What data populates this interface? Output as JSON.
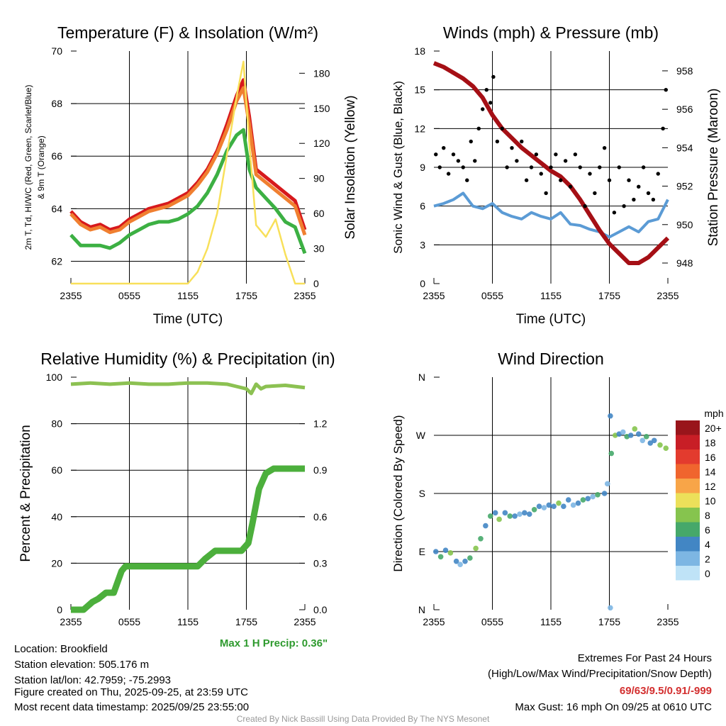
{
  "chart_data": [
    {
      "type": "line",
      "title": "Temperature (F) & Insolation (W/m²)",
      "xlabel": "Time (UTC)",
      "ylabel": "2m T, Td, HI/WC (Red, Green, Scarlet/Blue) & 9m T (Orange)",
      "ylabel_right": "Solar Insolation (Yellow)",
      "xticks": [
        "2355",
        "0555",
        "1155",
        "1755",
        "2355"
      ],
      "ylim": [
        61.15,
        70
      ],
      "yticks": [
        62,
        64,
        66,
        68,
        70
      ],
      "ylim_right": [
        0,
        199
      ],
      "yticks_right": [
        0,
        30,
        60,
        90,
        120,
        150,
        180
      ],
      "x_hours": [
        0,
        1,
        2,
        3,
        4,
        5,
        6,
        7,
        8,
        9,
        10,
        11,
        12,
        13,
        14,
        15,
        16,
        17,
        17.7,
        18.3,
        19,
        20,
        21,
        22,
        23,
        24
      ],
      "series": [
        {
          "name": "2m T",
          "color": "#d7191c",
          "values": [
            63.9,
            63.5,
            63.3,
            63.4,
            63.2,
            63.3,
            63.6,
            63.8,
            64.0,
            64.1,
            64.2,
            64.4,
            64.6,
            65.0,
            65.5,
            66.2,
            67.2,
            68.3,
            68.9,
            67.5,
            65.5,
            65.2,
            64.9,
            64.6,
            64.3,
            63.2
          ]
        },
        {
          "name": "9m T",
          "color": "#f07f30",
          "values": [
            63.8,
            63.4,
            63.2,
            63.3,
            63.1,
            63.2,
            63.5,
            63.7,
            63.9,
            64.0,
            64.1,
            64.3,
            64.5,
            64.9,
            65.4,
            66.1,
            67.0,
            68.1,
            68.6,
            67.2,
            65.3,
            65.0,
            64.7,
            64.4,
            64.1,
            63.0
          ]
        },
        {
          "name": "Td",
          "color": "#3cb043",
          "values": [
            63.0,
            62.6,
            62.6,
            62.6,
            62.5,
            62.7,
            63.0,
            63.2,
            63.4,
            63.5,
            63.5,
            63.6,
            63.8,
            64.1,
            64.6,
            65.3,
            66.2,
            66.8,
            67.0,
            65.5,
            64.8,
            64.4,
            64.0,
            63.5,
            63.3,
            62.3
          ]
        },
        {
          "name": "Solar",
          "color": "#f8e05a",
          "axis": "right",
          "values": [
            0,
            0,
            0,
            0,
            0,
            0,
            0,
            0,
            0,
            0,
            0,
            0,
            0,
            10,
            30,
            60,
            110,
            160,
            190,
            120,
            50,
            40,
            55,
            25,
            0,
            0
          ]
        }
      ]
    },
    {
      "type": "line+scatter",
      "title": "Winds (mph) & Pressure (mb)",
      "xlabel": "Time (UTC)",
      "ylabel": "Sonic Wind & Gust (Blue, Black)",
      "ylabel_right": "Station Pressure (Maroon)",
      "xticks": [
        "2355",
        "0555",
        "1155",
        "1755",
        "2355"
      ],
      "ylim": [
        0,
        18
      ],
      "yticks": [
        0,
        3,
        6,
        9,
        12,
        15,
        18
      ],
      "ylim_right": [
        946.93,
        959.03
      ],
      "yticks_right": [
        948,
        950,
        952,
        954,
        956,
        958
      ],
      "x_hours": [
        0,
        1,
        2,
        3,
        4,
        5,
        6,
        7,
        8,
        9,
        10,
        11,
        12,
        13,
        14,
        15,
        16,
        17,
        18,
        19,
        20,
        21,
        22,
        23,
        24
      ],
      "series": [
        {
          "name": "Sonic Wind",
          "color": "#5b9bd5",
          "values": [
            6,
            6.2,
            6.5,
            7,
            6,
            5.8,
            6.2,
            5.5,
            5.2,
            5,
            5.5,
            5.2,
            5,
            5.5,
            4.6,
            4.5,
            4.2,
            4,
            3.6,
            4,
            4.4,
            4,
            4.8,
            5,
            6.5
          ]
        },
        {
          "name": "Station Pressure",
          "color": "#a50f15",
          "axis": "right",
          "values": [
            958.4,
            958.2,
            957.9,
            957.6,
            957.2,
            956.6,
            955.7,
            955.0,
            954.5,
            954.0,
            953.6,
            953.2,
            952.8,
            952.5,
            952.0,
            951.3,
            950.5,
            949.7,
            949.0,
            948.5,
            948.0,
            948.0,
            948.3,
            948.8,
            949.3
          ]
        },
        {
          "name": "Gust",
          "color": "#000000",
          "type": "scatter",
          "points": [
            [
              0.2,
              10
            ],
            [
              0.6,
              9
            ],
            [
              1,
              10.5
            ],
            [
              1.5,
              8.5
            ],
            [
              2,
              10
            ],
            [
              2.5,
              9.5
            ],
            [
              3,
              9
            ],
            [
              3.4,
              8
            ],
            [
              3.8,
              11
            ],
            [
              4.2,
              9.5
            ],
            [
              4.6,
              12
            ],
            [
              5,
              13.5
            ],
            [
              5.4,
              15
            ],
            [
              5.8,
              14
            ],
            [
              6.1,
              16
            ],
            [
              6.5,
              11
            ],
            [
              7,
              12
            ],
            [
              7.5,
              9
            ],
            [
              8,
              10.5
            ],
            [
              8.5,
              9.5
            ],
            [
              9,
              11
            ],
            [
              9.5,
              8
            ],
            [
              10,
              9
            ],
            [
              10.5,
              10
            ],
            [
              11,
              8.5
            ],
            [
              11.5,
              7
            ],
            [
              12,
              9
            ],
            [
              12.5,
              10
            ],
            [
              13,
              8
            ],
            [
              13.5,
              9.5
            ],
            [
              14,
              7.5
            ],
            [
              14.5,
              10
            ],
            [
              15,
              9
            ],
            [
              15.5,
              6
            ],
            [
              16,
              8.5
            ],
            [
              16.5,
              7
            ],
            [
              17,
              9
            ],
            [
              17.5,
              10.5
            ],
            [
              18,
              8
            ],
            [
              18.5,
              5.5
            ],
            [
              19,
              9
            ],
            [
              19.5,
              6
            ],
            [
              20,
              8
            ],
            [
              20.5,
              6.5
            ],
            [
              21,
              7.5
            ],
            [
              21.5,
              9
            ],
            [
              22,
              7
            ],
            [
              22.5,
              6.5
            ],
            [
              23,
              8.5
            ],
            [
              23.5,
              12
            ],
            [
              23.8,
              15
            ]
          ]
        }
      ]
    },
    {
      "type": "line",
      "title": "Relative Humidity (%) & Precipitation (in)",
      "ylabel": "Percent & Precipitation",
      "xticks": [
        "2355",
        "0555",
        "1155",
        "1755",
        "2355"
      ],
      "ylim": [
        0,
        100
      ],
      "yticks": [
        0,
        20,
        40,
        60,
        80,
        100
      ],
      "ylim_right": [
        0,
        1.5
      ],
      "yticks_right": [
        "0.0",
        "0.3",
        "0.6",
        "0.9",
        "1.2"
      ],
      "annotation": "Max 1 H Precip: 0.36\"",
      "series": [
        {
          "name": "RH",
          "color": "#8cc152",
          "x": [
            0,
            2,
            4,
            6,
            8,
            10,
            12,
            14,
            16,
            17,
            18,
            18.5,
            19,
            19.5,
            20,
            22,
            24
          ],
          "values": [
            97,
            97.5,
            97,
            97.5,
            97,
            97,
            97.5,
            97.5,
            97,
            96,
            95,
            93,
            97,
            95,
            96,
            96.5,
            95.5
          ]
        },
        {
          "name": "Precip",
          "color": "#4caf3c",
          "axis": "right",
          "x": [
            0,
            1.3,
            2.2,
            2.8,
            3.6,
            4.4,
            5.2,
            5.6,
            13,
            13.8,
            14.8,
            17.5,
            18.2,
            18.6,
            19.3,
            20,
            20.8,
            24
          ],
          "values": [
            0,
            0,
            0.05,
            0.07,
            0.11,
            0.11,
            0.25,
            0.28,
            0.28,
            0.33,
            0.38,
            0.38,
            0.43,
            0.55,
            0.78,
            0.88,
            0.91,
            0.91
          ]
        }
      ]
    },
    {
      "type": "scatter",
      "title": "Wind Direction",
      "ylabel": "Direction (Colored By Speed)",
      "xticks": [
        "2355",
        "0555",
        "1155",
        "1755",
        "2355"
      ],
      "ylim": [
        0,
        360
      ],
      "yticks": [
        "N",
        "E",
        "S",
        "W",
        "N"
      ],
      "colorbar": {
        "label": "mph",
        "ticks": [
          "20+",
          "18",
          "16",
          "14",
          "12",
          "10",
          "8",
          "6",
          "4",
          "2",
          "0"
        ],
        "colors": [
          "#99151b",
          "#c81e26",
          "#e33b2e",
          "#f0652e",
          "#f8a548",
          "#ece05a",
          "#86c44e",
          "#46a86a",
          "#4286c4",
          "#7db6e3",
          "#bfe3f7"
        ]
      },
      "points": [
        [
          0.2,
          90,
          4
        ],
        [
          0.7,
          82,
          6
        ],
        [
          1.2,
          92,
          4
        ],
        [
          1.7,
          88,
          8
        ],
        [
          2.3,
          75,
          4
        ],
        [
          2.7,
          70,
          2
        ],
        [
          3.2,
          75,
          4
        ],
        [
          3.7,
          80,
          6
        ],
        [
          4.3,
          95,
          8
        ],
        [
          4.8,
          110,
          6
        ],
        [
          5.3,
          130,
          4
        ],
        [
          5.8,
          145,
          6
        ],
        [
          6.3,
          150,
          4
        ],
        [
          6.7,
          140,
          8
        ],
        [
          7.3,
          150,
          4
        ],
        [
          7.8,
          145,
          6
        ],
        [
          8.3,
          145,
          4
        ],
        [
          8.8,
          148,
          2
        ],
        [
          9.3,
          150,
          4
        ],
        [
          9.8,
          148,
          4
        ],
        [
          10.3,
          155,
          6
        ],
        [
          10.8,
          160,
          4
        ],
        [
          11.3,
          158,
          2
        ],
        [
          11.8,
          162,
          4
        ],
        [
          12.3,
          160,
          4
        ],
        [
          12.8,
          165,
          8
        ],
        [
          13.3,
          160,
          4
        ],
        [
          13.8,
          170,
          4
        ],
        [
          14.3,
          162,
          2
        ],
        [
          14.8,
          165,
          4
        ],
        [
          15.3,
          170,
          6
        ],
        [
          15.8,
          172,
          4
        ],
        [
          16.3,
          175,
          2
        ],
        [
          16.8,
          178,
          6
        ],
        [
          17.5,
          180,
          4
        ],
        [
          17.8,
          195,
          2
        ],
        [
          18.1,
          300,
          4
        ],
        [
          18.2,
          242,
          6
        ],
        [
          18.6,
          270,
          8
        ],
        [
          19,
          272,
          4
        ],
        [
          19.4,
          275,
          2
        ],
        [
          19.8,
          268,
          6
        ],
        [
          20.2,
          270,
          4
        ],
        [
          20.6,
          280,
          8
        ],
        [
          21,
          272,
          4
        ],
        [
          21.4,
          262,
          2
        ],
        [
          21.8,
          268,
          6
        ],
        [
          22.2,
          258,
          4
        ],
        [
          22.6,
          262,
          4
        ],
        [
          23.2,
          255,
          8
        ],
        [
          23.8,
          250,
          8
        ],
        [
          18.1,
          3,
          2
        ]
      ]
    }
  ],
  "info": {
    "location": "Location: Brookfield",
    "elevation": "Station elevation: 505.176 m",
    "latlon": "Station lat/lon: 42.7959; -75.2993",
    "created": "Figure created on Thu, 2025-09-25, at 23:59 UTC",
    "recent": "Most recent data timestamp: 2025/09/25 23:55:00",
    "extremes_title": "Extremes For Past 24 Hours",
    "extremes_sub": "(High/Low/Max Wind/Precipitation/Snow Depth)",
    "extremes_values": "69/63/9.5/0.91/-999",
    "max_gust": "Max Gust: 16 mph On 09/25 at 0610 UTC",
    "credit": "Created By Nick Bassill Using Data Provided By The NYS Mesonet"
  }
}
